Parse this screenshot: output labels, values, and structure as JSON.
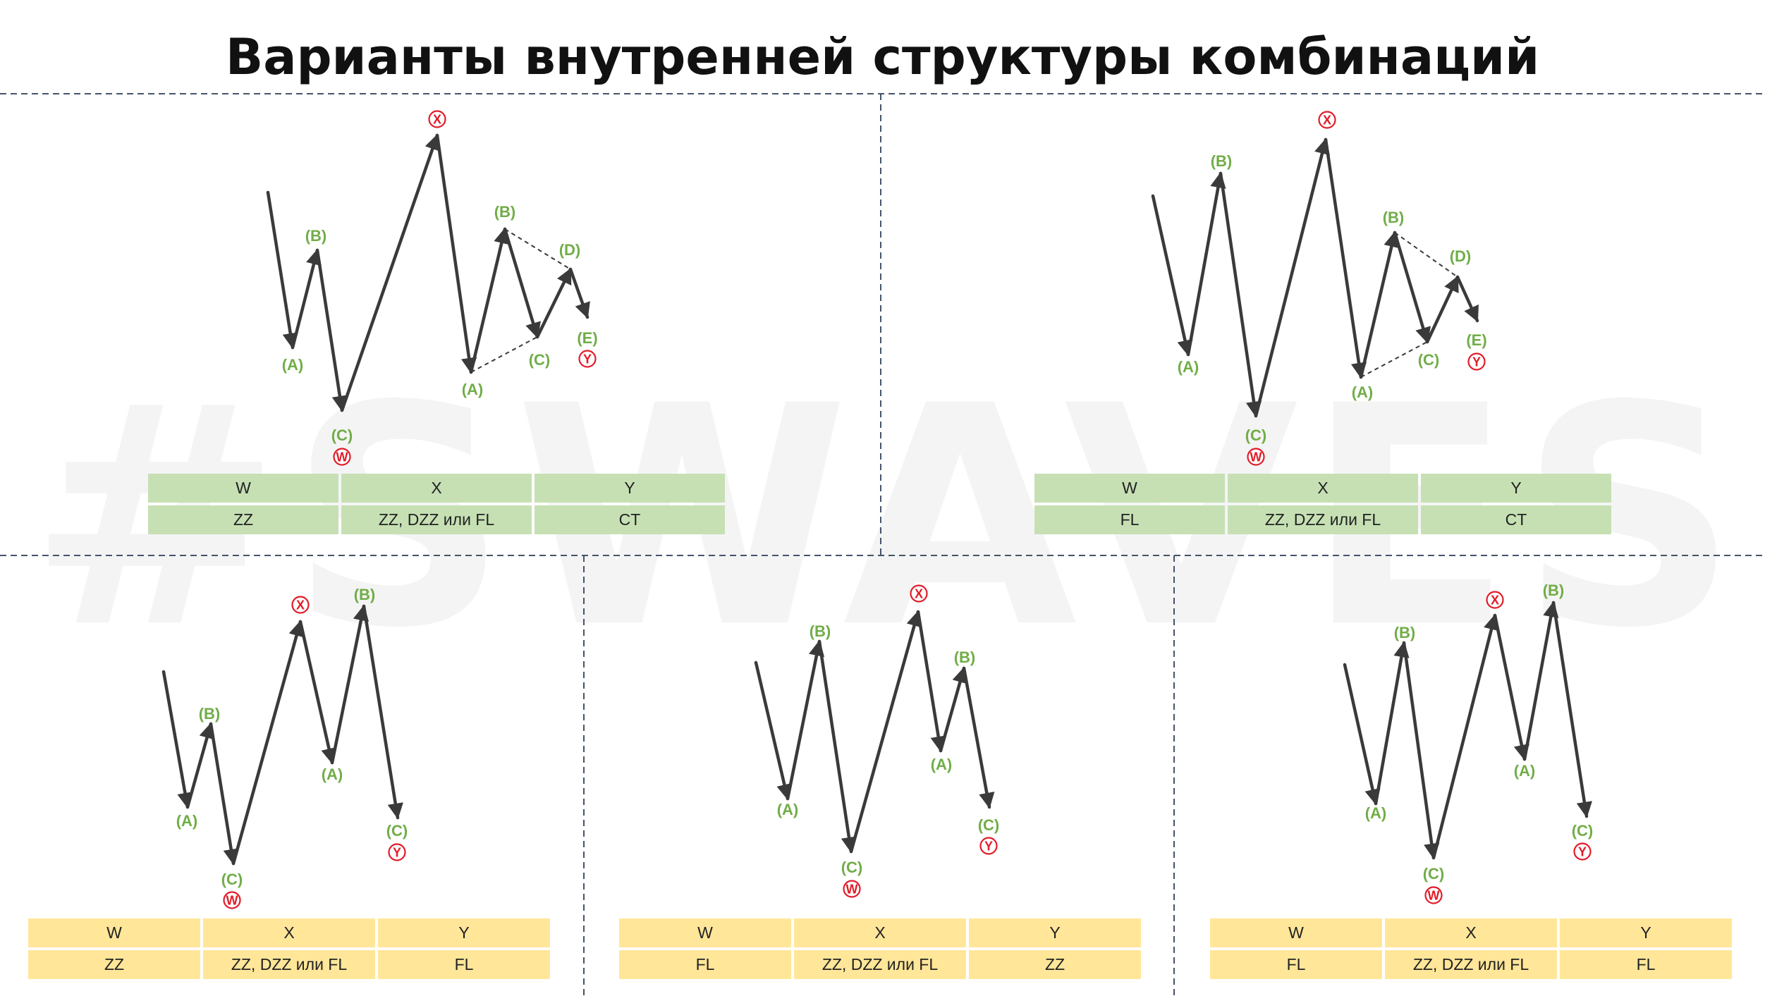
{
  "title": "Варианты внутренней структуры комбинаций",
  "watermark": "#SWAVES",
  "colors": {
    "wave": "#3a3a3a",
    "label_green": "#70ad47",
    "label_red": "#e11d2a",
    "table_green": "#c6e0b4",
    "table_yellow": "#ffe699",
    "divider": "#44546a"
  },
  "panels": [
    {
      "id": "top-left",
      "labels": [
        "(A)",
        "(B)",
        "(C)",
        "W",
        "X",
        "(A)",
        "(B)",
        "(C)",
        "(D)",
        "(E)",
        "Y"
      ],
      "table": {
        "headers": [
          "W",
          "X",
          "Y"
        ],
        "values": [
          "ZZ",
          "ZZ, DZZ или FL",
          "CT"
        ]
      }
    },
    {
      "id": "top-right",
      "labels": [
        "(A)",
        "(B)",
        "(C)",
        "W",
        "X",
        "(A)",
        "(B)",
        "(C)",
        "(D)",
        "(E)",
        "Y"
      ],
      "table": {
        "headers": [
          "W",
          "X",
          "Y"
        ],
        "values": [
          "FL",
          "ZZ, DZZ или FL",
          "CT"
        ]
      }
    },
    {
      "id": "bottom-left",
      "labels": [
        "(A)",
        "(B)",
        "(C)",
        "W",
        "X",
        "(A)",
        "(B)",
        "(C)",
        "Y"
      ],
      "table": {
        "headers": [
          "W",
          "X",
          "Y"
        ],
        "values": [
          "ZZ",
          "ZZ, DZZ или FL",
          "FL"
        ]
      }
    },
    {
      "id": "bottom-middle",
      "labels": [
        "(A)",
        "(B)",
        "(C)",
        "W",
        "X",
        "(A)",
        "(B)",
        "(C)",
        "Y"
      ],
      "table": {
        "headers": [
          "W",
          "X",
          "Y"
        ],
        "values": [
          "FL",
          "ZZ, DZZ или FL",
          "ZZ"
        ]
      }
    },
    {
      "id": "bottom-right",
      "labels": [
        "(A)",
        "(B)",
        "(C)",
        "W",
        "X",
        "(A)",
        "(B)",
        "(C)",
        "Y"
      ],
      "table": {
        "headers": [
          "W",
          "X",
          "Y"
        ],
        "values": [
          "FL",
          "ZZ, DZZ или FL",
          "FL"
        ]
      }
    }
  ]
}
